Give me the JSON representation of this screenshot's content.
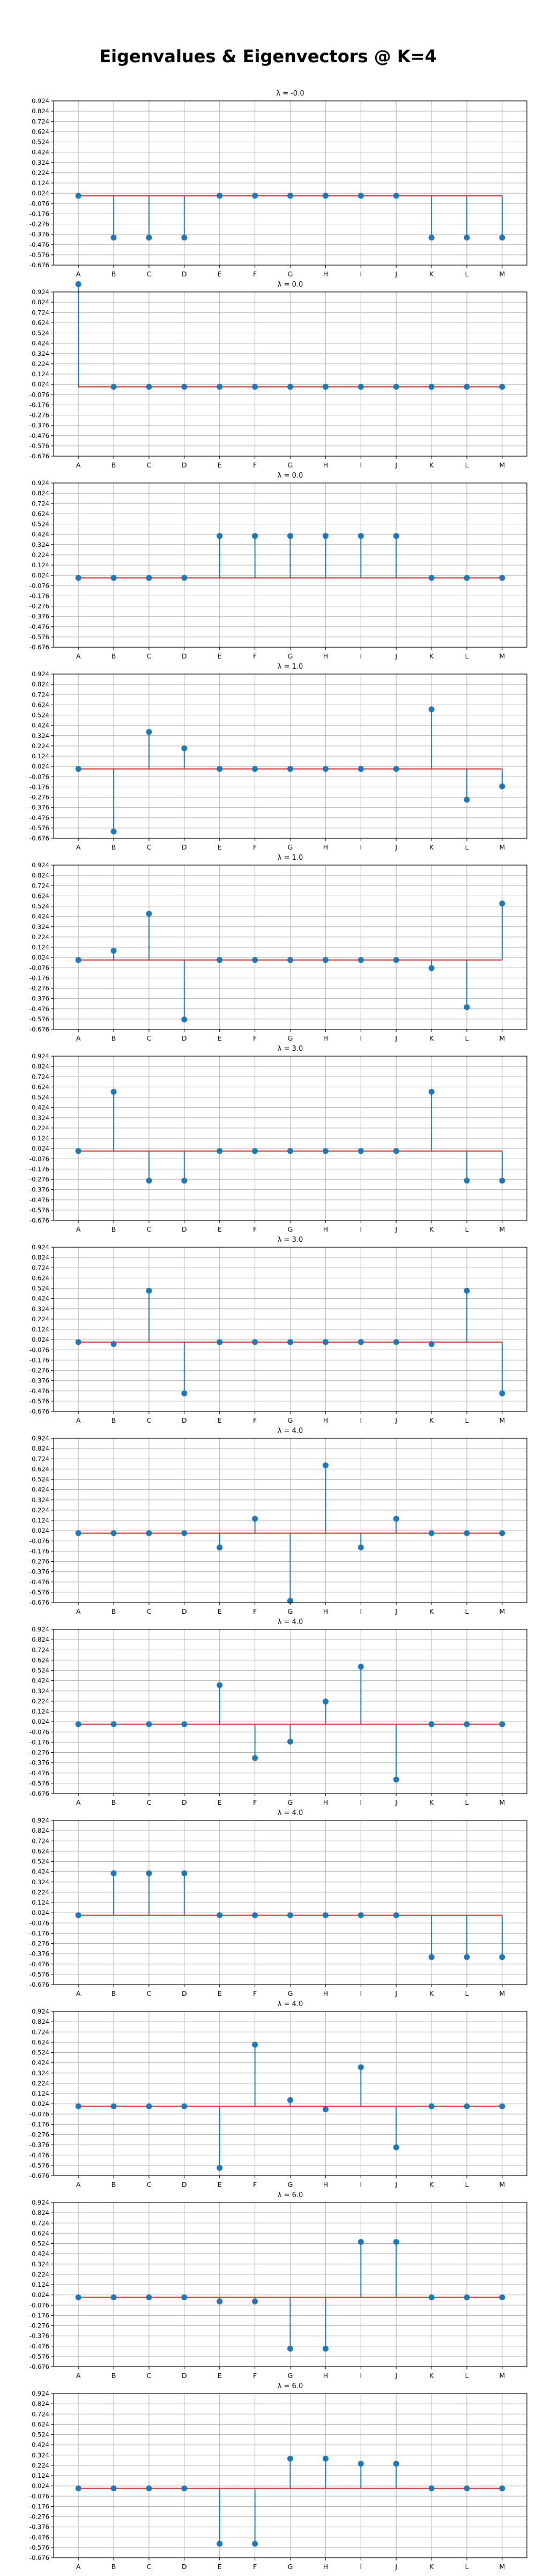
{
  "title": "Eigenvalues & Eigenvectors @ K=4",
  "colors": {
    "stem": "#1f77b4",
    "baseline": "#d62728",
    "grid": "#b0b0b0"
  },
  "chart_data": [
    {
      "type": "stem",
      "title": "λ = -0.0",
      "categories": [
        "A",
        "B",
        "C",
        "D",
        "E",
        "F",
        "G",
        "H",
        "I",
        "J",
        "K",
        "L",
        "M"
      ],
      "values": [
        0.0,
        -0.408,
        -0.408,
        -0.408,
        0.0,
        0.0,
        0.0,
        0.0,
        0.0,
        0.0,
        -0.408,
        -0.408,
        -0.408
      ],
      "ylim": [
        -0.676,
        0.924
      ],
      "yticks": [
        0.924,
        0.824,
        0.724,
        0.624,
        0.524,
        0.424,
        0.324,
        0.224,
        0.124,
        0.024,
        -0.076,
        -0.176,
        -0.276,
        -0.376,
        -0.476,
        -0.576,
        -0.676
      ],
      "grid": true
    },
    {
      "type": "stem",
      "title": "λ = 0.0",
      "categories": [
        "A",
        "B",
        "C",
        "D",
        "E",
        "F",
        "G",
        "H",
        "I",
        "J",
        "K",
        "L",
        "M"
      ],
      "values": [
        1.0,
        0.0,
        0.0,
        0.0,
        0.0,
        0.0,
        0.0,
        0.0,
        0.0,
        0.0,
        0.0,
        0.0,
        0.0
      ],
      "ylim": [
        -0.676,
        0.924
      ],
      "yticks": [
        0.924,
        0.824,
        0.724,
        0.624,
        0.524,
        0.424,
        0.324,
        0.224,
        0.124,
        0.024,
        -0.076,
        -0.176,
        -0.276,
        -0.376,
        -0.476,
        -0.576,
        -0.676
      ],
      "grid": true
    },
    {
      "type": "stem",
      "title": "λ = 0.0",
      "categories": [
        "A",
        "B",
        "C",
        "D",
        "E",
        "F",
        "G",
        "H",
        "I",
        "J",
        "K",
        "L",
        "M"
      ],
      "values": [
        0.0,
        0.0,
        0.0,
        0.0,
        0.408,
        0.408,
        0.408,
        0.408,
        0.408,
        0.408,
        0.0,
        0.0,
        0.0
      ],
      "ylim": [
        -0.676,
        0.924
      ],
      "yticks": [
        0.924,
        0.824,
        0.724,
        0.624,
        0.524,
        0.424,
        0.324,
        0.224,
        0.124,
        0.024,
        -0.076,
        -0.176,
        -0.276,
        -0.376,
        -0.476,
        -0.576,
        -0.676
      ],
      "grid": true
    },
    {
      "type": "stem",
      "title": "λ = 1.0",
      "categories": [
        "A",
        "B",
        "C",
        "D",
        "E",
        "F",
        "G",
        "H",
        "I",
        "J",
        "K",
        "L",
        "M"
      ],
      "values": [
        0.0,
        -0.61,
        0.36,
        0.2,
        0.0,
        0.0,
        0.0,
        0.0,
        0.0,
        0.0,
        0.58,
        -0.3,
        -0.17
      ],
      "ylim": [
        -0.676,
        0.924
      ],
      "yticks": [
        0.924,
        0.824,
        0.724,
        0.624,
        0.524,
        0.424,
        0.324,
        0.224,
        0.124,
        0.024,
        -0.076,
        -0.176,
        -0.276,
        -0.376,
        -0.476,
        -0.576,
        -0.676
      ],
      "grid": true
    },
    {
      "type": "stem",
      "title": "λ = 1.0",
      "categories": [
        "A",
        "B",
        "C",
        "D",
        "E",
        "F",
        "G",
        "H",
        "I",
        "J",
        "K",
        "L",
        "M"
      ],
      "values": [
        0.0,
        0.09,
        0.45,
        -0.58,
        0.0,
        0.0,
        0.0,
        0.0,
        0.0,
        0.0,
        -0.08,
        -0.46,
        0.55
      ],
      "ylim": [
        -0.676,
        0.924
      ],
      "yticks": [
        0.924,
        0.824,
        0.724,
        0.624,
        0.524,
        0.424,
        0.324,
        0.224,
        0.124,
        0.024,
        -0.076,
        -0.176,
        -0.276,
        -0.376,
        -0.476,
        -0.576,
        -0.676
      ],
      "grid": true
    },
    {
      "type": "stem",
      "title": "λ = 3.0",
      "categories": [
        "A",
        "B",
        "C",
        "D",
        "E",
        "F",
        "G",
        "H",
        "I",
        "J",
        "K",
        "L",
        "M"
      ],
      "values": [
        0.0,
        0.577,
        -0.289,
        -0.289,
        0.0,
        0.0,
        0.0,
        0.0,
        0.0,
        0.0,
        0.577,
        -0.289,
        -0.289
      ],
      "ylim": [
        -0.676,
        0.924
      ],
      "yticks": [
        0.924,
        0.824,
        0.724,
        0.624,
        0.524,
        0.424,
        0.324,
        0.224,
        0.124,
        0.024,
        -0.076,
        -0.176,
        -0.276,
        -0.376,
        -0.476,
        -0.576,
        -0.676
      ],
      "grid": true
    },
    {
      "type": "stem",
      "title": "λ = 3.0",
      "categories": [
        "A",
        "B",
        "C",
        "D",
        "E",
        "F",
        "G",
        "H",
        "I",
        "J",
        "K",
        "L",
        "M"
      ],
      "values": [
        0.0,
        -0.02,
        0.5,
        -0.5,
        0.0,
        0.0,
        0.0,
        0.0,
        0.0,
        0.0,
        -0.02,
        0.5,
        -0.5
      ],
      "ylim": [
        -0.676,
        0.924
      ],
      "yticks": [
        0.924,
        0.824,
        0.724,
        0.624,
        0.524,
        0.424,
        0.324,
        0.224,
        0.124,
        0.024,
        -0.076,
        -0.176,
        -0.276,
        -0.376,
        -0.476,
        -0.576,
        -0.676
      ],
      "grid": true
    },
    {
      "type": "stem",
      "title": "λ = 4.0",
      "categories": [
        "A",
        "B",
        "C",
        "D",
        "E",
        "F",
        "G",
        "H",
        "I",
        "J",
        "K",
        "L",
        "M"
      ],
      "values": [
        0.0,
        0.0,
        0.0,
        0.0,
        -0.14,
        0.14,
        -0.66,
        0.66,
        -0.14,
        0.14,
        0.0,
        0.0,
        0.0
      ],
      "ylim": [
        -0.676,
        0.924
      ],
      "yticks": [
        0.924,
        0.824,
        0.724,
        0.624,
        0.524,
        0.424,
        0.324,
        0.224,
        0.124,
        0.024,
        -0.076,
        -0.176,
        -0.276,
        -0.376,
        -0.476,
        -0.576,
        -0.676
      ],
      "grid": true
    },
    {
      "type": "stem",
      "title": "λ = 4.0",
      "categories": [
        "A",
        "B",
        "C",
        "D",
        "E",
        "F",
        "G",
        "H",
        "I",
        "J",
        "K",
        "L",
        "M"
      ],
      "values": [
        0.0,
        0.0,
        0.0,
        0.0,
        0.38,
        -0.33,
        -0.17,
        0.22,
        0.56,
        -0.54,
        0.0,
        0.0,
        0.0
      ],
      "ylim": [
        -0.676,
        0.924
      ],
      "yticks": [
        0.924,
        0.824,
        0.724,
        0.624,
        0.524,
        0.424,
        0.324,
        0.224,
        0.124,
        0.024,
        -0.076,
        -0.176,
        -0.276,
        -0.376,
        -0.476,
        -0.576,
        -0.676
      ],
      "grid": true
    },
    {
      "type": "stem",
      "title": "λ = 4.0",
      "categories": [
        "A",
        "B",
        "C",
        "D",
        "E",
        "F",
        "G",
        "H",
        "I",
        "J",
        "K",
        "L",
        "M"
      ],
      "values": [
        0.0,
        0.408,
        0.408,
        0.408,
        0.0,
        0.0,
        0.0,
        0.0,
        0.0,
        0.0,
        -0.408,
        -0.408,
        -0.408
      ],
      "ylim": [
        -0.676,
        0.924
      ],
      "yticks": [
        0.924,
        0.824,
        0.724,
        0.624,
        0.524,
        0.424,
        0.324,
        0.224,
        0.124,
        0.024,
        -0.076,
        -0.176,
        -0.276,
        -0.376,
        -0.476,
        -0.576,
        -0.676
      ],
      "grid": true
    },
    {
      "type": "stem",
      "title": "λ = 4.0",
      "categories": [
        "A",
        "B",
        "C",
        "D",
        "E",
        "F",
        "G",
        "H",
        "I",
        "J",
        "K",
        "L",
        "M"
      ],
      "values": [
        0.0,
        0.0,
        0.0,
        0.0,
        -0.6,
        0.6,
        0.06,
        -0.03,
        0.38,
        -0.4,
        0.0,
        0.0,
        0.0
      ],
      "ylim": [
        -0.676,
        0.924
      ],
      "yticks": [
        0.924,
        0.824,
        0.724,
        0.624,
        0.524,
        0.424,
        0.324,
        0.224,
        0.124,
        0.024,
        -0.076,
        -0.176,
        -0.276,
        -0.376,
        -0.476,
        -0.576,
        -0.676
      ],
      "grid": true
    },
    {
      "type": "stem",
      "title": "λ = 6.0",
      "categories": [
        "A",
        "B",
        "C",
        "D",
        "E",
        "F",
        "G",
        "H",
        "I",
        "J",
        "K",
        "L",
        "M"
      ],
      "values": [
        0.0,
        0.0,
        0.0,
        0.0,
        -0.04,
        -0.04,
        -0.5,
        -0.5,
        0.54,
        0.54,
        0.0,
        0.0,
        0.0
      ],
      "ylim": [
        -0.676,
        0.924
      ],
      "yticks": [
        0.924,
        0.824,
        0.724,
        0.624,
        0.524,
        0.424,
        0.324,
        0.224,
        0.124,
        0.024,
        -0.076,
        -0.176,
        -0.276,
        -0.376,
        -0.476,
        -0.576,
        -0.676
      ],
      "grid": true
    },
    {
      "type": "stem",
      "title": "λ = 6.0",
      "categories": [
        "A",
        "B",
        "C",
        "D",
        "E",
        "F",
        "G",
        "H",
        "I",
        "J",
        "K",
        "L",
        "M"
      ],
      "values": [
        0.0,
        0.0,
        0.0,
        0.0,
        -0.54,
        -0.54,
        0.29,
        0.29,
        0.24,
        0.24,
        0.0,
        0.0,
        0.0
      ],
      "ylim": [
        -0.676,
        0.924
      ],
      "yticks": [
        0.924,
        0.824,
        0.724,
        0.624,
        0.524,
        0.424,
        0.324,
        0.224,
        0.124,
        0.024,
        -0.076,
        -0.176,
        -0.276,
        -0.376,
        -0.476,
        -0.576,
        -0.676
      ],
      "grid": true
    }
  ]
}
